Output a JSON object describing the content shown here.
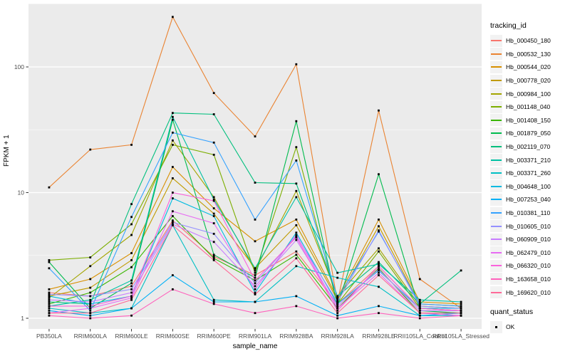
{
  "figure": {
    "y_axis": {
      "title": "FPKM + 1"
    },
    "x_axis": {
      "title": "sample_name"
    },
    "legend": {
      "tracking_title": "tracking_id",
      "quant_title": "quant_status",
      "quant_items": [
        {
          "label": "OK"
        }
      ]
    }
  },
  "chart_data": {
    "type": "line",
    "title": "",
    "xlabel": "sample_name",
    "ylabel": "FPKM + 1",
    "y_scale": "log10",
    "ylim": [
      1,
      316
    ],
    "y_ticks": [
      1,
      10,
      100
    ],
    "y_minor_ticks": [
      3.162,
      31.62,
      316.2
    ],
    "grid": "white major and minor on grey panel",
    "panel_background": "#EBEBEB",
    "legend_position": "right",
    "point_marker": "black square (quant_status OK)",
    "categories": [
      "PB350LA",
      "RRIM600LA",
      "RRIM600LE",
      "RRIM600SE",
      "RRIM600PE",
      "RRIM901LA",
      "RRIM928BA",
      "RRIM928LA",
      "RRIM928LE",
      "RRII105LA_Control",
      "RRII105LA_Stressed"
    ],
    "series": [
      {
        "name": "Hb_000450_180",
        "color": "#F8766D",
        "values": [
          1.6,
          1.5,
          1.8,
          6.0,
          3.1,
          2.2,
          3.4,
          1.3,
          2.6,
          1.2,
          1.15
        ]
      },
      {
        "name": "Hb_000532_130",
        "color": "#EA8331",
        "values": [
          11,
          22,
          24,
          250,
          62,
          28,
          105,
          1.35,
          45,
          2.05,
          1.2
        ]
      },
      {
        "name": "Hb_000544_020",
        "color": "#D89000",
        "values": [
          1.7,
          2.05,
          3.3,
          16,
          7.5,
          4.1,
          6.1,
          1.45,
          6.1,
          1.35,
          1.3
        ]
      },
      {
        "name": "Hb_000778_020",
        "color": "#C09B00",
        "values": [
          1.5,
          1.75,
          2.9,
          13,
          6.8,
          2.5,
          5.5,
          1.4,
          5.4,
          1.3,
          1.25
        ]
      },
      {
        "name": "Hb_000984_100",
        "color": "#A3A500",
        "values": [
          1.45,
          2.6,
          4.6,
          26,
          9.2,
          2.4,
          10.3,
          1.5,
          3.6,
          1.25,
          1.2
        ]
      },
      {
        "name": "Hb_001148_040",
        "color": "#7CAE00",
        "values": [
          2.9,
          3.05,
          5.6,
          24,
          20,
          2.3,
          23,
          1.3,
          3.4,
          1.2,
          1.15
        ]
      },
      {
        "name": "Hb_001408_150",
        "color": "#39B600",
        "values": [
          1.3,
          1.6,
          2.55,
          6.5,
          3.0,
          2.0,
          3.2,
          1.2,
          2.5,
          1.1,
          1.1
        ]
      },
      {
        "name": "Hb_001879_050",
        "color": "#00BB4E",
        "values": [
          2.8,
          1.2,
          1.9,
          38,
          3.2,
          2.1,
          37,
          1.25,
          14,
          1.15,
          1.1
        ]
      },
      {
        "name": "Hb_002119_070",
        "color": "#00BF7D",
        "values": [
          1.35,
          1.3,
          8.1,
          43,
          42,
          12,
          11.8,
          1.5,
          2.8,
          1.3,
          2.4
        ]
      },
      {
        "name": "Hb_003371_210",
        "color": "#00C1A3",
        "values": [
          1.25,
          1.4,
          2.0,
          40,
          8.8,
          2.5,
          9.2,
          2.3,
          2.7,
          1.4,
          1.35
        ]
      },
      {
        "name": "Hb_003371_260",
        "color": "#00BFC4",
        "values": [
          1.2,
          1.1,
          1.2,
          5.5,
          1.4,
          1.35,
          2.6,
          2.1,
          1.78,
          1.05,
          1.05
        ]
      },
      {
        "name": "Hb_004648_100",
        "color": "#00BAE0",
        "values": [
          1.5,
          1.3,
          1.5,
          9.0,
          6.5,
          1.6,
          4.8,
          1.3,
          2.4,
          1.2,
          1.2
        ]
      },
      {
        "name": "Hb_007253_040",
        "color": "#00B0F6",
        "values": [
          1.15,
          1.05,
          1.2,
          2.2,
          1.35,
          1.35,
          1.5,
          1.05,
          1.25,
          1.05,
          1.1
        ]
      },
      {
        "name": "Hb_010381_110",
        "color": "#35A2FF",
        "values": [
          2.5,
          1.15,
          6.4,
          30,
          25,
          6.1,
          18,
          1.45,
          4.9,
          1.3,
          1.25
        ]
      },
      {
        "name": "Hb_010605_010",
        "color": "#9590FF",
        "values": [
          1.55,
          1.5,
          1.7,
          5.8,
          4.7,
          1.9,
          4.5,
          1.35,
          5.0,
          1.25,
          1.2
        ]
      },
      {
        "name": "Hb_060909_010",
        "color": "#C77CFF",
        "values": [
          1.4,
          1.35,
          1.6,
          5.6,
          4.05,
          1.8,
          4.2,
          1.25,
          2.45,
          1.15,
          1.15
        ]
      },
      {
        "name": "Hb_062479_010",
        "color": "#E76BF3",
        "values": [
          1.1,
          1.2,
          1.45,
          7.1,
          5.7,
          1.7,
          4.6,
          1.2,
          2.3,
          1.1,
          1.05
        ]
      },
      {
        "name": "Hb_066320_010",
        "color": "#FA62DB",
        "values": [
          1.25,
          1.25,
          1.5,
          10,
          8.6,
          2.0,
          4.4,
          1.15,
          2.6,
          1.2,
          1.15
        ]
      },
      {
        "name": "Hb_163658_010",
        "color": "#FF62BC",
        "values": [
          1.05,
          1.0,
          1.05,
          1.7,
          1.3,
          1.1,
          1.25,
          1.0,
          1.1,
          1.0,
          1.05
        ]
      },
      {
        "name": "Hb_169620_010",
        "color": "#FF6A98",
        "values": [
          1.1,
          1.1,
          1.4,
          5.5,
          2.9,
          1.55,
          3.0,
          1.1,
          2.2,
          1.1,
          1.1
        ]
      }
    ]
  }
}
